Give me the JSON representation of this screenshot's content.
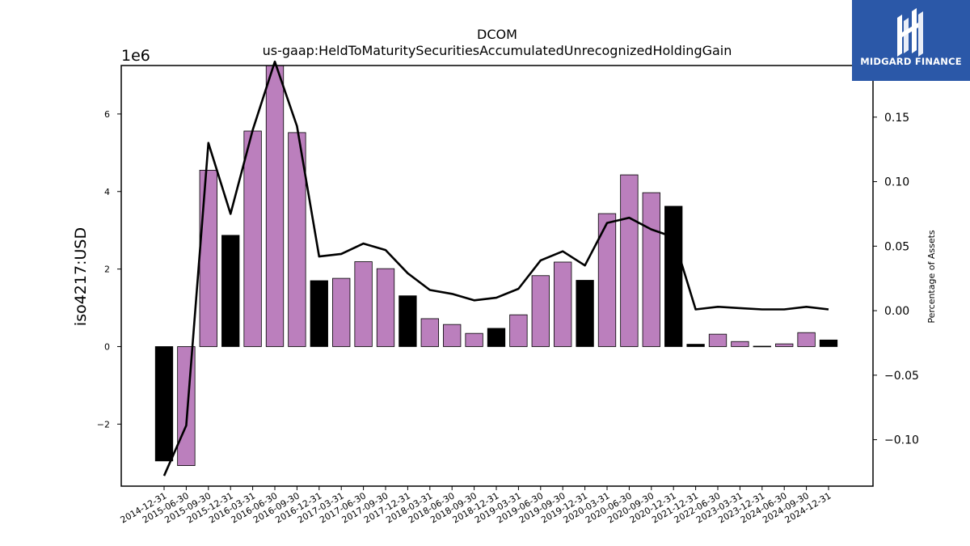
{
  "brand": {
    "name": "MIDGARD FINANCE",
    "bg_color": "#2b58a8"
  },
  "chart_data": {
    "type": "bar",
    "title": "DCOM",
    "subtitle": "us-gaap:HeldToMaturitySecuritiesAccumulatedUnrecognizedHoldingGain",
    "ylabel": "iso4217:USD",
    "y2label": "Percentage of Assets",
    "y_scale_label": "1e6",
    "ylim": [
      -3.6,
      7.25
    ],
    "y_ticks": [
      -2,
      0,
      2,
      4,
      6
    ],
    "y2lim": [
      -0.136,
      0.19
    ],
    "y2_ticks": [
      -0.1,
      -0.05,
      0.0,
      0.05,
      0.1,
      0.15
    ],
    "y2_tick_labels": [
      "−0.10",
      "−0.05",
      "0.00",
      "0.05",
      "0.10",
      "0.15"
    ],
    "categories": [
      "2014-12-31",
      "2015-06-30",
      "2015-09-30",
      "2015-12-31",
      "2016-03-31",
      "2016-06-30",
      "2016-09-30",
      "2016-12-31",
      "2017-03-31",
      "2017-06-30",
      "2017-09-30",
      "2017-12-31",
      "2018-03-31",
      "2018-06-30",
      "2018-09-30",
      "2018-12-31",
      "2019-03-31",
      "2019-06-30",
      "2019-09-30",
      "2019-12-31",
      "2020-03-31",
      "2020-06-30",
      "2020-09-30",
      "2020-12-31",
      "2021-12-31",
      "2022-06-30",
      "2023-03-31",
      "2023-12-31",
      "2024-06-30",
      "2024-09-30",
      "2024-12-31"
    ],
    "values": [
      -2.95,
      -3.07,
      4.55,
      2.87,
      5.56,
      7.25,
      5.52,
      1.7,
      1.76,
      2.19,
      2.01,
      1.31,
      0.72,
      0.57,
      0.34,
      0.47,
      0.82,
      1.83,
      2.18,
      1.71,
      3.43,
      4.43,
      3.97,
      3.62,
      0.06,
      0.32,
      0.13,
      0.01,
      0.07,
      0.36,
      0.17
    ],
    "bar_colors": [
      "#000000",
      "#bb7fbd",
      "#bb7fbd",
      "#000000",
      "#bb7fbd",
      "#bb7fbd",
      "#bb7fbd",
      "#000000",
      "#bb7fbd",
      "#bb7fbd",
      "#bb7fbd",
      "#000000",
      "#bb7fbd",
      "#bb7fbd",
      "#bb7fbd",
      "#000000",
      "#bb7fbd",
      "#bb7fbd",
      "#bb7fbd",
      "#000000",
      "#bb7fbd",
      "#bb7fbd",
      "#bb7fbd",
      "#000000",
      "#000000",
      "#bb7fbd",
      "#bb7fbd",
      "#bb7fbd",
      "#bb7fbd",
      "#bb7fbd",
      "#000000"
    ],
    "line_values": [
      -0.128,
      -0.089,
      0.13,
      0.075,
      0.14,
      0.193,
      0.143,
      0.042,
      0.044,
      0.052,
      0.047,
      0.029,
      0.016,
      0.013,
      0.008,
      0.01,
      0.017,
      0.039,
      0.046,
      0.035,
      0.068,
      0.072,
      0.063,
      0.057,
      0.001,
      0.003,
      0.002,
      0.001,
      0.001,
      0.003,
      0.001
    ],
    "line_color": "#000000",
    "grid": false
  }
}
